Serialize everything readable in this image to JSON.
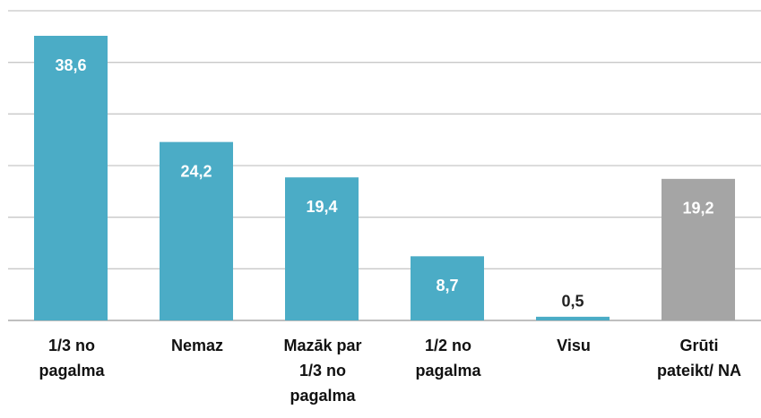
{
  "chart_data": {
    "type": "bar",
    "categories": [
      "1/3 no\npagalma",
      "Nemaz",
      "Mazāk par\n1/3 no\npagalma",
      "1/2 no\npagalma",
      "Visu",
      "Grūti\npateikt/ NA"
    ],
    "values": [
      38.6,
      24.2,
      19.4,
      8.7,
      0.5,
      19.2
    ],
    "value_labels": [
      "38,6",
      "24,2",
      "19,4",
      "8,7",
      "0,5",
      "19,2"
    ],
    "colors": [
      "#4bacc6",
      "#4bacc6",
      "#4bacc6",
      "#4bacc6",
      "#4bacc6",
      "#a5a5a5"
    ],
    "ylim": [
      0,
      42
    ],
    "yticks": [
      0,
      7,
      14,
      21,
      28,
      35,
      42
    ],
    "grid": true
  }
}
